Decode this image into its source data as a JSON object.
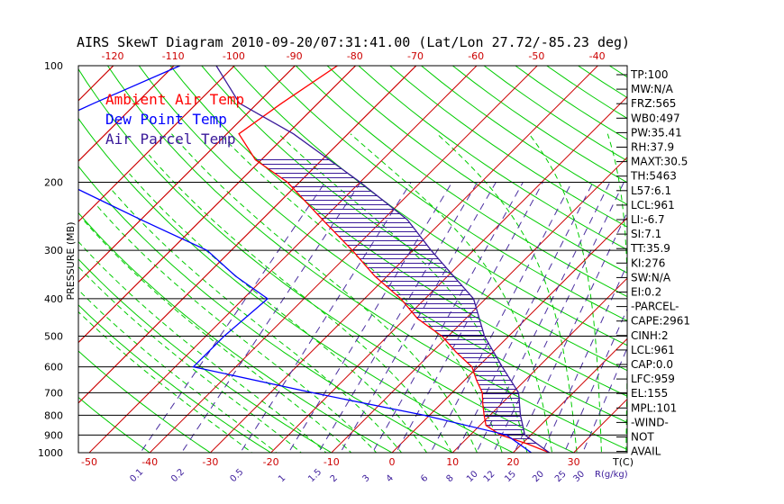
{
  "title": "AIRS SkewT Diagram 2010-09-20/07:31:41.00 (Lat/Lon 27.72/-85.23 deg)",
  "colors": {
    "ambient": "#ff0000",
    "dewpoint": "#0000ff",
    "parcel": "#3a1a9a",
    "isotherm": "#cc0000",
    "dry_adiabat": "#00cc00",
    "moist_adiabat": "#00cc00",
    "mixing_ratio": "#4b2fa0",
    "hatch": "#3a1a9a"
  },
  "legend": {
    "ambient": "Ambient Air Temp",
    "dewpoint": "Dew Point Temp",
    "parcel": "Air Parcel Temp"
  },
  "yaxis_label": "PRESSURE (MB)",
  "pressure_ticks": [
    "100",
    "200",
    "300",
    "400",
    "500",
    "600",
    "700",
    "800",
    "900",
    "1000"
  ],
  "top_temp_ticks": [
    "-120",
    "-110",
    "-100",
    "-90",
    "-80",
    "-70",
    "-60",
    "-50",
    "-40"
  ],
  "bottom_temp_ticks": [
    "-50",
    "-40",
    "-30",
    "-20",
    "-10",
    "0",
    "10",
    "20",
    "30"
  ],
  "bottom_unit_label": "T(C)",
  "mixing_ratio_ticks": [
    "0.1",
    "0.2",
    "0.5",
    "1",
    "1.5",
    "2",
    "3",
    "4",
    "6",
    "8",
    "10",
    "12",
    "15",
    "20",
    "25",
    "30"
  ],
  "mixing_ratio_unit": "R(g/kg)",
  "indices": [
    "TP:100",
    "MW:N/A",
    "FRZ:565",
    "WB0:497",
    "PW:35.41",
    "RH:37.9",
    "MAXT:30.5",
    "TH:5463",
    "L57:6.1",
    "LCL:961",
    "LI:-6.7",
    "SI:7.1",
    "TT:35.9",
    "KI:276",
    "SW:N/A",
    "EI:0.2",
    "-PARCEL-",
    "CAPE:2961",
    "CINH:2",
    "LCL:961",
    "CAP:0.0",
    "LFC:959",
    "EL:155",
    "MPL:101",
    "-WIND-",
    "NOT",
    "AVAIL"
  ],
  "chart_data": {
    "type": "line",
    "title": "AIRS SkewT Diagram 2010-09-20/07:31:41.00 (Lat/Lon 27.72/-85.23 deg)",
    "ylabel": "PRESSURE (MB)",
    "xlabel": "T(C)",
    "yscale": "log",
    "ylim": [
      1000,
      100
    ],
    "xlim_bottom": [
      -50,
      30
    ],
    "xlim_top": [
      -120,
      -40
    ],
    "pressure_levels": [
      100,
      200,
      300,
      400,
      500,
      600,
      700,
      800,
      900,
      1000
    ],
    "series": [
      {
        "name": "Ambient Air Temp",
        "points": [
          {
            "p": 100,
            "t": -73
          },
          {
            "p": 125,
            "t": -76
          },
          {
            "p": 150,
            "t": -78
          },
          {
            "p": 175,
            "t": -71
          },
          {
            "p": 200,
            "t": -62
          },
          {
            "p": 250,
            "t": -50
          },
          {
            "p": 300,
            "t": -40
          },
          {
            "p": 350,
            "t": -32
          },
          {
            "p": 400,
            "t": -24
          },
          {
            "p": 450,
            "t": -18
          },
          {
            "p": 500,
            "t": -11
          },
          {
            "p": 550,
            "t": -6
          },
          {
            "p": 600,
            "t": -1
          },
          {
            "p": 650,
            "t": 2
          },
          {
            "p": 700,
            "t": 5
          },
          {
            "p": 750,
            "t": 7
          },
          {
            "p": 800,
            "t": 9
          },
          {
            "p": 850,
            "t": 11
          },
          {
            "p": 900,
            "t": 15
          },
          {
            "p": 950,
            "t": 21
          },
          {
            "p": 1000,
            "t": 26
          }
        ]
      },
      {
        "name": "Dew Point Temp",
        "points": [
          {
            "p": 100,
            "t": -99
          },
          {
            "p": 125,
            "t": -107
          },
          {
            "p": 150,
            "t": -113
          },
          {
            "p": 175,
            "t": -108
          },
          {
            "p": 200,
            "t": -99
          },
          {
            "p": 250,
            "t": -80
          },
          {
            "p": 300,
            "t": -64
          },
          {
            "p": 350,
            "t": -55
          },
          {
            "p": 400,
            "t": -46
          },
          {
            "p": 500,
            "t": -47
          },
          {
            "p": 600,
            "t": -47
          },
          {
            "p": 700,
            "t": -23
          },
          {
            "p": 800,
            "t": -1
          },
          {
            "p": 900,
            "t": 16
          },
          {
            "p": 1000,
            "t": 23
          }
        ]
      },
      {
        "name": "Air Parcel Temp",
        "points": [
          {
            "p": 100,
            "t": -93
          },
          {
            "p": 125,
            "t": -83
          },
          {
            "p": 150,
            "t": -69
          },
          {
            "p": 200,
            "t": -50
          },
          {
            "p": 250,
            "t": -36
          },
          {
            "p": 300,
            "t": -27
          },
          {
            "p": 350,
            "t": -19
          },
          {
            "p": 400,
            "t": -12
          },
          {
            "p": 500,
            "t": -4
          },
          {
            "p": 600,
            "t": 4
          },
          {
            "p": 700,
            "t": 11
          },
          {
            "p": 800,
            "t": 15
          },
          {
            "p": 900,
            "t": 19
          },
          {
            "p": 1000,
            "t": 26
          }
        ]
      }
    ],
    "isotherms_c": [
      -120,
      -110,
      -100,
      -90,
      -80,
      -70,
      -60,
      -50,
      -40,
      -30,
      -20,
      -10,
      0,
      10,
      20,
      30,
      40
    ],
    "mixing_ratios_gkg": [
      0.1,
      0.2,
      0.5,
      1,
      1.5,
      2,
      3,
      4,
      6,
      8,
      10,
      12,
      15,
      20,
      25,
      30
    ],
    "cape_shaded": true
  }
}
